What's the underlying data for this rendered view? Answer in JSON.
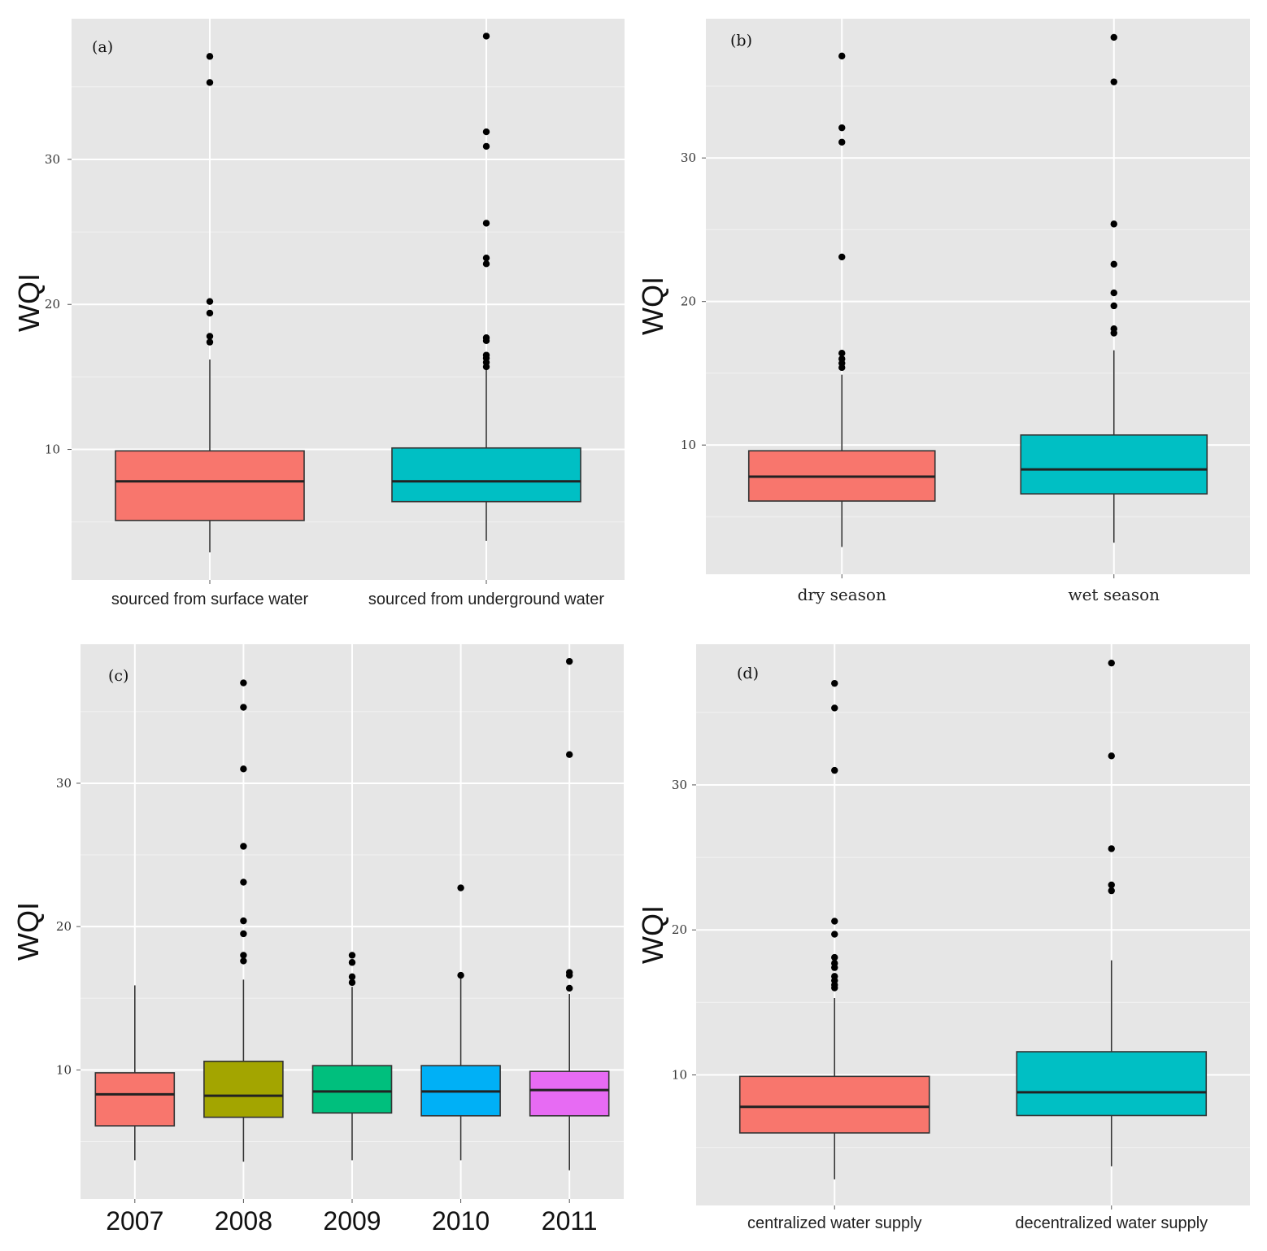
{
  "figure": {
    "ylabel": "WQI"
  },
  "chart_data": [
    {
      "panel": "(a)",
      "type": "box",
      "ylabel": "WQI",
      "yticks": [
        10,
        20,
        30
      ],
      "ylim": [
        1,
        39.7
      ],
      "label_style": "sans",
      "categories": [
        "sourced from surface water",
        "sourced from underground water"
      ],
      "series": [
        {
          "name": "sourced from surface water",
          "color": "#F8766D",
          "whisker_low": 2.9,
          "q1": 5.1,
          "median": 7.8,
          "q3": 9.9,
          "whisker_high": 16.2,
          "outliers": [
            37.1,
            35.3,
            20.2,
            19.4,
            17.8,
            17.4
          ]
        },
        {
          "name": "sourced from underground water",
          "color": "#00BFC4",
          "whisker_low": 3.7,
          "q1": 6.4,
          "median": 7.8,
          "q3": 10.1,
          "whisker_high": 15.5,
          "outliers": [
            38.5,
            31.9,
            30.9,
            25.6,
            23.2,
            22.8,
            17.7,
            17.5,
            16.5,
            16.3,
            16.0,
            15.7
          ]
        }
      ]
    },
    {
      "panel": "(b)",
      "type": "box",
      "ylabel": "WQI",
      "yticks": [
        10,
        20,
        30
      ],
      "ylim": [
        1,
        39.7
      ],
      "label_style": "serif",
      "categories": [
        "dry season",
        "wet season"
      ],
      "series": [
        {
          "name": "dry season",
          "color": "#F8766D",
          "whisker_low": 2.9,
          "q1": 6.1,
          "median": 7.8,
          "q3": 9.6,
          "whisker_high": 14.9,
          "outliers": [
            37.1,
            32.1,
            31.1,
            23.1,
            16.4,
            16.0,
            15.7,
            15.4
          ]
        },
        {
          "name": "wet season",
          "color": "#00BFC4",
          "whisker_low": 3.2,
          "q1": 6.6,
          "median": 8.3,
          "q3": 10.7,
          "whisker_high": 16.6,
          "outliers": [
            38.4,
            35.3,
            25.4,
            22.6,
            20.6,
            19.7,
            18.1,
            17.8
          ]
        }
      ]
    },
    {
      "panel": "(c)",
      "type": "box",
      "ylabel": "WQI",
      "yticks": [
        10,
        20,
        30
      ],
      "ylim": [
        1,
        39.7
      ],
      "label_style": "big",
      "categories": [
        "2007",
        "2008",
        "2009",
        "2010",
        "2011"
      ],
      "series": [
        {
          "name": "2007",
          "color": "#F8766D",
          "whisker_low": 3.7,
          "q1": 6.1,
          "median": 8.3,
          "q3": 9.8,
          "whisker_high": 15.9,
          "outliers": []
        },
        {
          "name": "2008",
          "color": "#A3A500",
          "whisker_low": 3.6,
          "q1": 6.7,
          "median": 8.2,
          "q3": 10.6,
          "whisker_high": 16.3,
          "outliers": [
            37.0,
            35.3,
            31.0,
            25.6,
            23.1,
            20.4,
            19.5,
            18.0,
            17.6
          ]
        },
        {
          "name": "2009",
          "color": "#00BF7D",
          "whisker_low": 3.7,
          "q1": 7.0,
          "median": 8.5,
          "q3": 10.3,
          "whisker_high": 15.8,
          "outliers": [
            18.0,
            17.5,
            16.5,
            16.1
          ]
        },
        {
          "name": "2010",
          "color": "#00B0F6",
          "whisker_low": 3.7,
          "q1": 6.8,
          "median": 8.5,
          "q3": 10.3,
          "whisker_high": 16.5,
          "outliers": [
            22.7,
            16.6
          ]
        },
        {
          "name": "2011",
          "color": "#E76BF3",
          "whisker_low": 3.0,
          "q1": 6.8,
          "median": 8.6,
          "q3": 9.9,
          "whisker_high": 15.3,
          "outliers": [
            38.5,
            32.0,
            16.8,
            16.6,
            15.7
          ]
        }
      ]
    },
    {
      "panel": "(d)",
      "type": "box",
      "ylabel": "WQI",
      "yticks": [
        10,
        20,
        30
      ],
      "ylim": [
        1,
        39.7
      ],
      "label_style": "sans",
      "categories": [
        "centralized water supply",
        "decentralized water supply"
      ],
      "series": [
        {
          "name": "centralized water supply",
          "color": "#F8766D",
          "whisker_low": 2.8,
          "q1": 6.0,
          "median": 7.8,
          "q3": 9.9,
          "whisker_high": 15.3,
          "outliers": [
            37.0,
            35.3,
            31.0,
            20.6,
            19.7,
            18.1,
            17.7,
            17.4,
            16.8,
            16.5,
            16.2,
            16.0
          ]
        },
        {
          "name": "decentralized water supply",
          "color": "#00BFC4",
          "whisker_low": 3.7,
          "q1": 7.2,
          "median": 8.8,
          "q3": 11.6,
          "whisker_high": 17.9,
          "outliers": [
            38.4,
            32.0,
            25.6,
            23.1,
            22.7
          ]
        }
      ]
    }
  ]
}
